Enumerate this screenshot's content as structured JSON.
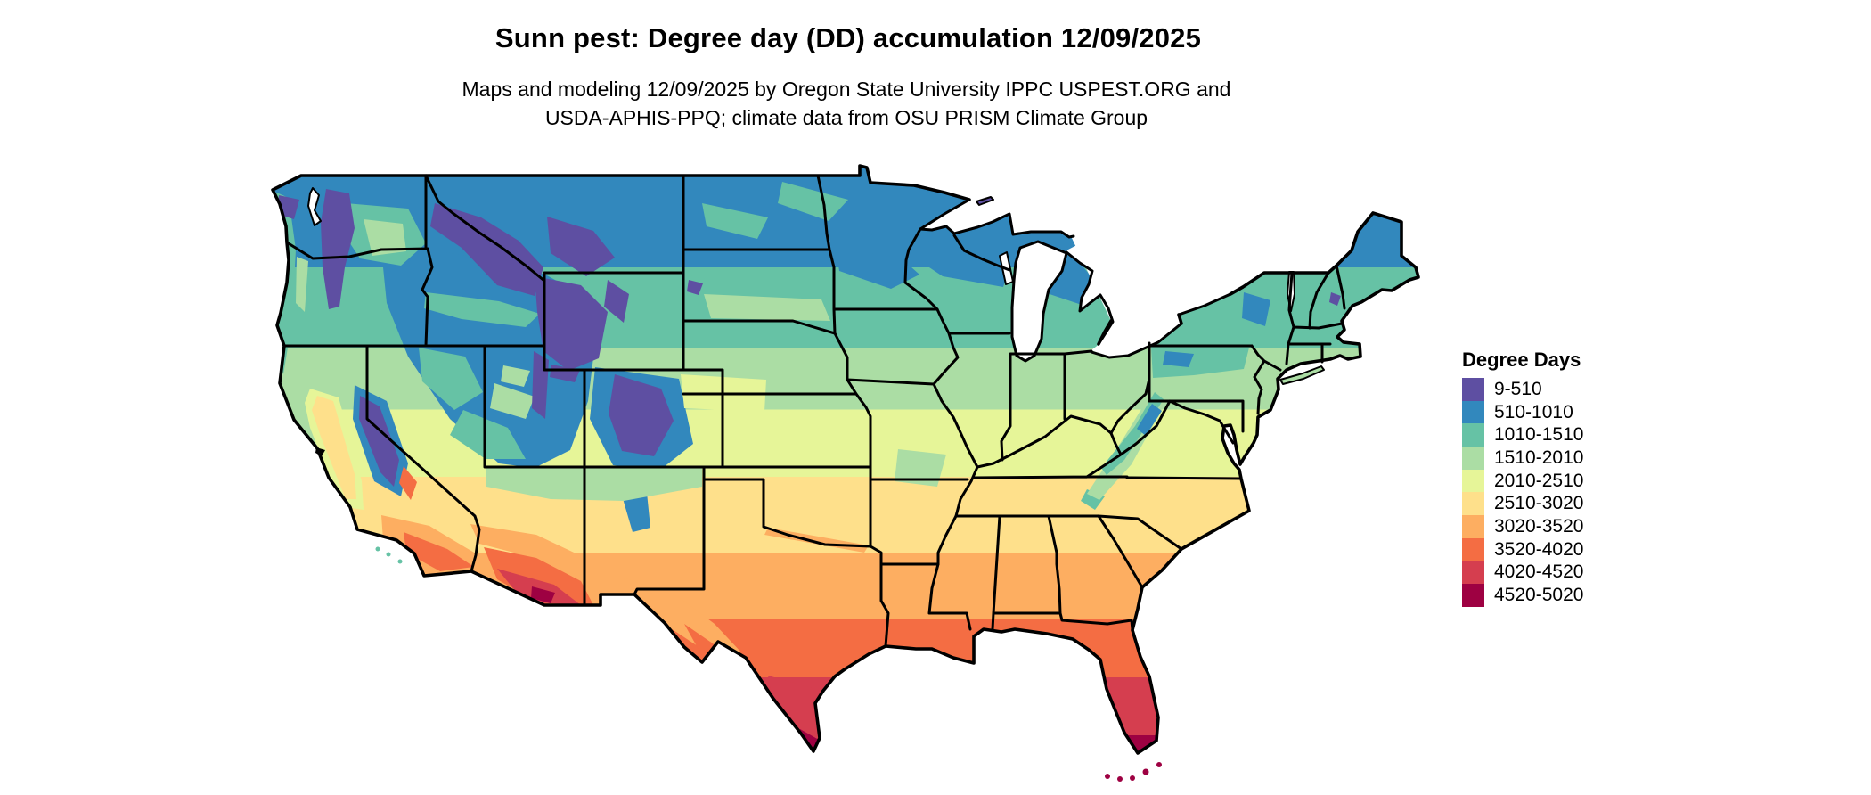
{
  "title": "Sunn pest: Degree day (DD) accumulation 12/09/2025",
  "subtitle": {
    "line1": "Maps and modeling 12/09/2025 by Oregon State University IPPC USPEST.ORG and",
    "line2": "USDA-APHIS-PPQ; climate data from OSU PRISM Climate Group"
  },
  "legend": {
    "title": "Degree Days",
    "classes": [
      {
        "label": "9-510",
        "color": "#5e4fa2"
      },
      {
        "label": "510-1010",
        "color": "#3288bd"
      },
      {
        "label": "1010-1510",
        "color": "#66c2a5"
      },
      {
        "label": "1510-2010",
        "color": "#abdda4"
      },
      {
        "label": "2010-2510",
        "color": "#e6f598"
      },
      {
        "label": "2510-3020",
        "color": "#fee08b"
      },
      {
        "label": "3020-3520",
        "color": "#fdae61"
      },
      {
        "label": "3520-4020",
        "color": "#f46d43"
      },
      {
        "label": "4020-4520",
        "color": "#d53e4f"
      },
      {
        "label": "4520-5020",
        "color": "#9e0142"
      }
    ]
  },
  "map": {
    "region": "Continental United States",
    "border_color": "#000000",
    "water_color": "#ffffff"
  }
}
